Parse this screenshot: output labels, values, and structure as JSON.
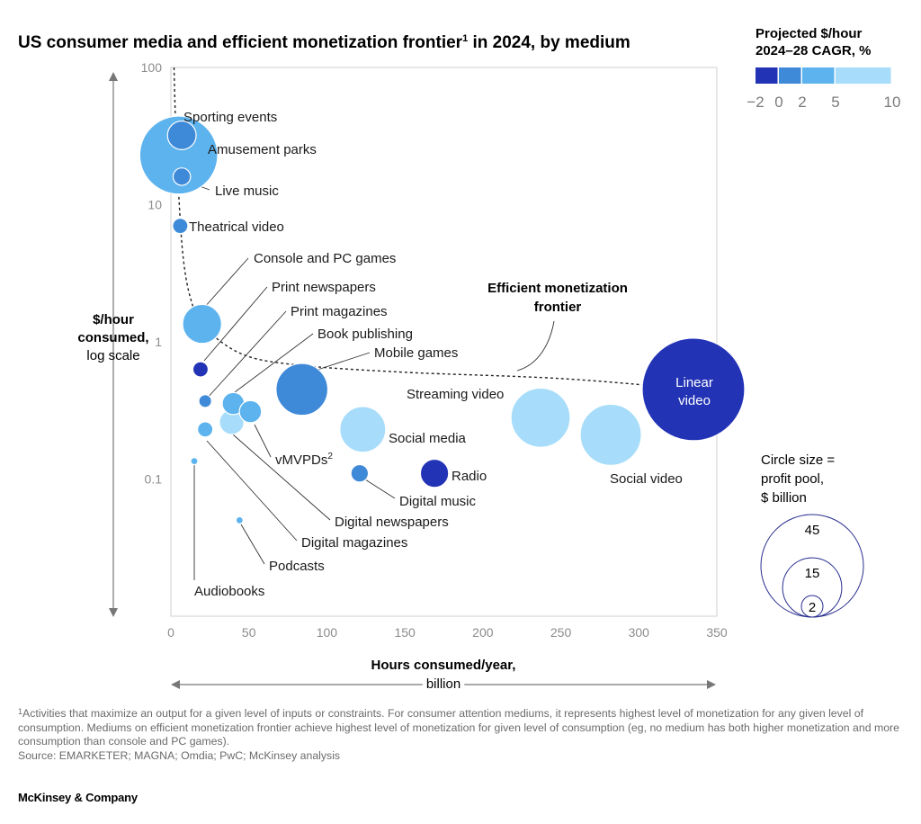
{
  "title": {
    "text": "US consumer media and efficient monetization frontier",
    "footnote_marker": "1",
    "suffix": " in 2024, by medium"
  },
  "legend": {
    "title_line1": "Projected $/hour",
    "title_line2": "2024–28 CAGR, %",
    "bins": [
      {
        "color": "#2233b5"
      },
      {
        "color": "#3f8ad8"
      },
      {
        "color": "#5db3ee"
      },
      {
        "color": "#a7ddfa"
      }
    ],
    "tick_labels": [
      "−2",
      "0",
      "2",
      "5",
      "10"
    ],
    "tick_values": [
      -2,
      0,
      2,
      5,
      10
    ]
  },
  "size_legend": {
    "title_lines": [
      "Circle size =",
      "profit pool,",
      "$ billion"
    ],
    "values": [
      2,
      15,
      45
    ],
    "labels": [
      "2",
      "15",
      "45"
    ]
  },
  "chart_data": {
    "type": "scatter",
    "subtype": "bubble",
    "x_axis": {
      "label_line1": "Hours consumed/year,",
      "label_line2": "billion",
      "range": [
        0,
        350
      ],
      "ticks": [
        0,
        50,
        100,
        150,
        200,
        250,
        300,
        350
      ],
      "tick_labels": [
        "0",
        "50",
        "100",
        "150",
        "200",
        "250",
        "300",
        "350"
      ]
    },
    "y_axis": {
      "label_line1": "$/hour",
      "label_line2": "consumed,",
      "label_line3": "log scale",
      "scale": "log",
      "range": [
        0.01,
        100
      ],
      "ticks": [
        100,
        10,
        1,
        0.1
      ],
      "tick_labels": [
        "100",
        "10",
        "1",
        "0.1"
      ]
    },
    "frontier": {
      "label_line1": "Efficient monetization",
      "label_line2": "frontier",
      "points": [
        [
          2,
          100
        ],
        [
          3,
          40
        ],
        [
          5,
          12
        ],
        [
          8,
          4
        ],
        [
          13,
          2
        ],
        [
          21,
          1.3
        ],
        [
          45,
          0.82
        ],
        [
          80,
          0.68
        ],
        [
          150,
          0.6
        ],
        [
          250,
          0.54
        ],
        [
          336,
          0.45
        ]
      ]
    },
    "series": [
      {
        "label": "Sporting events",
        "x": 7,
        "y": 32,
        "size": 3.5,
        "cagr_bin": 1
      },
      {
        "label": "Amusement parks",
        "x": 5,
        "y": 23,
        "size": 26,
        "cagr_bin": 2
      },
      {
        "label": "Live music",
        "x": 7,
        "y": 16,
        "size": 1.3,
        "cagr_bin": 1
      },
      {
        "label": "Theatrical video",
        "x": 6,
        "y": 7,
        "size": 1.0,
        "cagr_bin": 1
      },
      {
        "label": "Console and PC games",
        "x": 20,
        "y": 1.35,
        "size": 6.5,
        "cagr_bin": 2
      },
      {
        "label": "Print newspapers",
        "x": 19,
        "y": 0.63,
        "size": 1.0,
        "cagr_bin": 0
      },
      {
        "label": "Print magazines",
        "x": 22,
        "y": 0.37,
        "size": 0.7,
        "cagr_bin": 1
      },
      {
        "label": "Book publishing",
        "x": 40,
        "y": 0.355,
        "size": 2.1,
        "cagr_bin": 2
      },
      {
        "label": "vMVPDs",
        "label_sup": "2",
        "x": 51,
        "y": 0.31,
        "size": 2.1,
        "cagr_bin": 2
      },
      {
        "label": "Mobile games",
        "x": 84,
        "y": 0.45,
        "size": 11.5,
        "cagr_bin": 1
      },
      {
        "label": "Digital newspapers",
        "x": 39,
        "y": 0.26,
        "size": 2.6,
        "cagr_bin": 3
      },
      {
        "label": "Digital magazines",
        "x": 22,
        "y": 0.23,
        "size": 1.0,
        "cagr_bin": 2
      },
      {
        "label": "Audiobooks",
        "x": 15,
        "y": 0.135,
        "size": 0.22,
        "cagr_bin": 2
      },
      {
        "label": "Podcasts",
        "x": 44,
        "y": 0.05,
        "size": 0.22,
        "cagr_bin": 2
      },
      {
        "label": "Social media",
        "x": 123,
        "y": 0.23,
        "size": 9,
        "cagr_bin": 3
      },
      {
        "label": "Digital music",
        "x": 121,
        "y": 0.11,
        "size": 1.3,
        "cagr_bin": 1
      },
      {
        "label": "Radio",
        "x": 169,
        "y": 0.11,
        "size": 3.4,
        "cagr_bin": 0
      },
      {
        "label": "Streaming video",
        "x": 237,
        "y": 0.28,
        "size": 15,
        "cagr_bin": 3
      },
      {
        "label": "Social video",
        "x": 282,
        "y": 0.21,
        "size": 16,
        "cagr_bin": 3
      },
      {
        "label": "Linear video",
        "x": 335,
        "y": 0.45,
        "size": 45,
        "cagr_bin": 0
      }
    ]
  },
  "footnote": {
    "marker": "1",
    "text": "Activities that maximize an output for a given level of inputs or constraints. For consumer attention mediums, it represents highest level of monetization for any given level of consumption. Mediums on efficient monetization frontier achieve highest level of monetization for given level of consumption (eg, no medium has both higher monetization and more consumption than console and PC games).",
    "source": "Source: EMARKETER; MAGNA; Omdia; PwC; McKinsey analysis"
  },
  "brand": "McKinsey & Company"
}
